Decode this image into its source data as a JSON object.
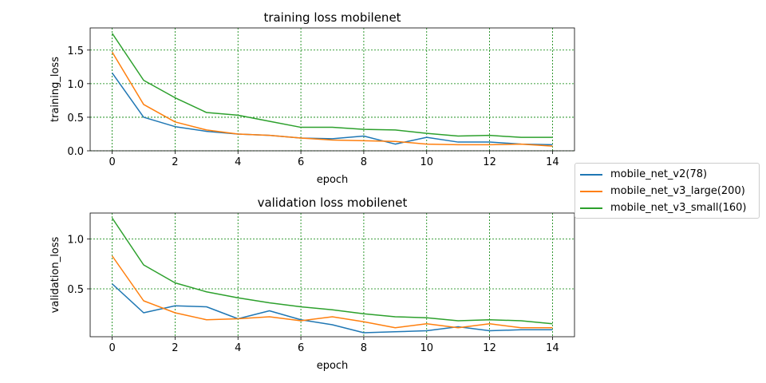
{
  "chart_data": [
    {
      "type": "line",
      "title": "training loss mobilenet",
      "xlabel": "epoch",
      "ylabel": "training_loss",
      "xlim": [
        -0.7,
        14.7
      ],
      "ylim": [
        0,
        1.83
      ],
      "xticks": [
        0,
        2,
        4,
        6,
        8,
        10,
        12,
        14
      ],
      "yticks": [
        0.0,
        0.5,
        1.0,
        1.5
      ],
      "ytick_labels": [
        "0.0",
        "0.5",
        "1.0",
        "1.5"
      ],
      "grid": true,
      "grid_color": "#008000",
      "x": [
        0,
        1,
        2,
        3,
        4,
        5,
        6,
        7,
        8,
        9,
        10,
        11,
        12,
        13,
        14
      ],
      "series": [
        {
          "name": "mobile_net_v2(78)",
          "color": "#1f77b4",
          "values": [
            1.16,
            0.5,
            0.36,
            0.29,
            0.25,
            0.23,
            0.19,
            0.18,
            0.22,
            0.1,
            0.2,
            0.13,
            0.13,
            0.1,
            0.09
          ]
        },
        {
          "name": "mobile_net_v3_large(200)",
          "color": "#ff7f0e",
          "values": [
            1.47,
            0.69,
            0.43,
            0.31,
            0.25,
            0.23,
            0.19,
            0.16,
            0.15,
            0.14,
            0.1,
            0.09,
            0.09,
            0.1,
            0.07
          ]
        },
        {
          "name": "mobile_net_v3_small(160)",
          "color": "#2ca02c",
          "values": [
            1.75,
            1.05,
            0.79,
            0.57,
            0.53,
            0.44,
            0.35,
            0.35,
            0.32,
            0.31,
            0.26,
            0.22,
            0.23,
            0.2,
            0.2
          ]
        }
      ]
    },
    {
      "type": "line",
      "title": "validation loss mobilenet",
      "xlabel": "epoch",
      "ylabel": "validation_loss",
      "xlim": [
        -0.7,
        14.7
      ],
      "ylim": [
        0.02,
        1.26
      ],
      "xticks": [
        0,
        2,
        4,
        6,
        8,
        10,
        12,
        14
      ],
      "yticks": [
        0.5,
        1.0
      ],
      "ytick_labels": [
        "0.5",
        "1.0"
      ],
      "grid": true,
      "grid_color": "#008000",
      "x": [
        0,
        1,
        2,
        3,
        4,
        5,
        6,
        7,
        8,
        9,
        10,
        11,
        12,
        13,
        14
      ],
      "series": [
        {
          "name": "mobile_net_v2(78)",
          "color": "#1f77b4",
          "values": [
            0.55,
            0.26,
            0.33,
            0.32,
            0.2,
            0.28,
            0.19,
            0.14,
            0.06,
            0.07,
            0.08,
            0.12,
            0.08,
            0.09,
            0.09
          ]
        },
        {
          "name": "mobile_net_v3_large(200)",
          "color": "#ff7f0e",
          "values": [
            0.83,
            0.38,
            0.26,
            0.19,
            0.2,
            0.22,
            0.18,
            0.22,
            0.17,
            0.11,
            0.15,
            0.11,
            0.15,
            0.11,
            0.11
          ]
        },
        {
          "name": "mobile_net_v3_small(160)",
          "color": "#2ca02c",
          "values": [
            1.21,
            0.74,
            0.56,
            0.47,
            0.41,
            0.36,
            0.32,
            0.29,
            0.25,
            0.22,
            0.21,
            0.18,
            0.19,
            0.18,
            0.15
          ]
        }
      ]
    }
  ],
  "legend": {
    "placement": "right",
    "items": [
      {
        "label": "mobile_net_v2(78)",
        "color": "#1f77b4"
      },
      {
        "label": "mobile_net_v3_large(200)",
        "color": "#ff7f0e"
      },
      {
        "label": "mobile_net_v3_small(160)",
        "color": "#2ca02c"
      }
    ]
  }
}
